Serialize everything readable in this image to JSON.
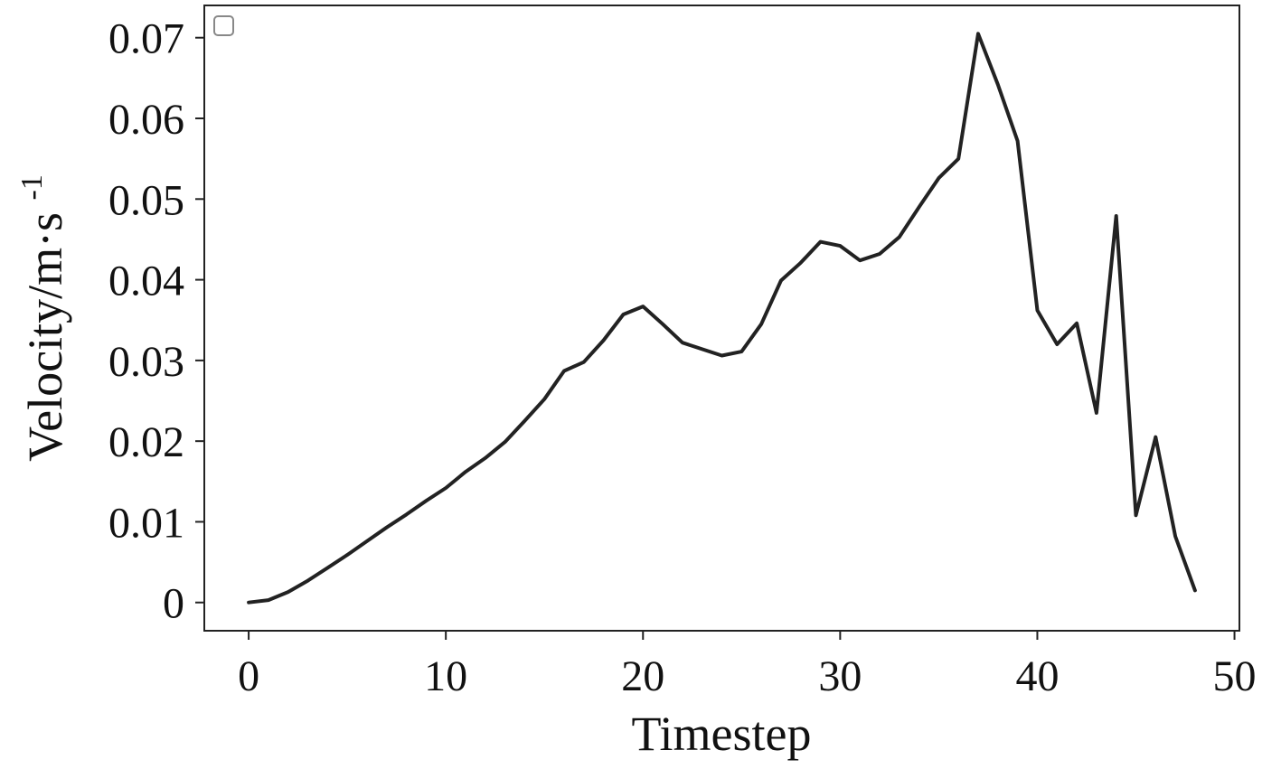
{
  "chart_data": {
    "type": "line",
    "xlabel": "Timestep",
    "ylabel": "Velocity/m·s",
    "ylabel_superscript": "-1",
    "xlim": [
      -2.25,
      50.25
    ],
    "ylim": [
      -0.0035,
      0.074
    ],
    "xticks": [
      {
        "value": 0,
        "label": "0"
      },
      {
        "value": 10,
        "label": "10"
      },
      {
        "value": 20,
        "label": "20"
      },
      {
        "value": 30,
        "label": "30"
      },
      {
        "value": 40,
        "label": "40"
      },
      {
        "value": 50,
        "label": "50"
      }
    ],
    "yticks": [
      {
        "value": 0,
        "label": "0"
      },
      {
        "value": 0.01,
        "label": "0.01"
      },
      {
        "value": 0.02,
        "label": "0.02"
      },
      {
        "value": 0.03,
        "label": "0.03"
      },
      {
        "value": 0.04,
        "label": "0.04"
      },
      {
        "value": 0.05,
        "label": "0.05"
      },
      {
        "value": 0.06,
        "label": "0.06"
      },
      {
        "value": 0.07,
        "label": "0.07"
      }
    ],
    "grid": false,
    "legend": {
      "position": "top-left",
      "entries": []
    },
    "line_color": "#222222",
    "series": [
      {
        "x": [
          0,
          1,
          2,
          3,
          4,
          5,
          6,
          7,
          8,
          9,
          10,
          11,
          12,
          13,
          14,
          15,
          16,
          17,
          18,
          19,
          20,
          21,
          22,
          23,
          24,
          25,
          26,
          27,
          28,
          29,
          30,
          31,
          32,
          33,
          34,
          35,
          36,
          37,
          38,
          39,
          40,
          41,
          42,
          43,
          44,
          45,
          46,
          47,
          48
        ],
        "y": [
          0.0,
          0.0003,
          0.0013,
          0.0027,
          0.0043,
          0.0059,
          0.0076,
          0.0093,
          0.0109,
          0.0126,
          0.0142,
          0.0162,
          0.0179,
          0.0199,
          0.0225,
          0.0252,
          0.0287,
          0.0298,
          0.0325,
          0.0357,
          0.0367,
          0.0345,
          0.0322,
          0.0314,
          0.0306,
          0.0311,
          0.0345,
          0.0399,
          0.0421,
          0.0447,
          0.0442,
          0.0424,
          0.0432,
          0.0453,
          0.049,
          0.0526,
          0.055,
          0.0705,
          0.0642,
          0.0572,
          0.0362,
          0.032,
          0.0346,
          0.0235,
          0.0479,
          0.0108,
          0.0205,
          0.0082,
          0.0015
        ]
      }
    ]
  }
}
